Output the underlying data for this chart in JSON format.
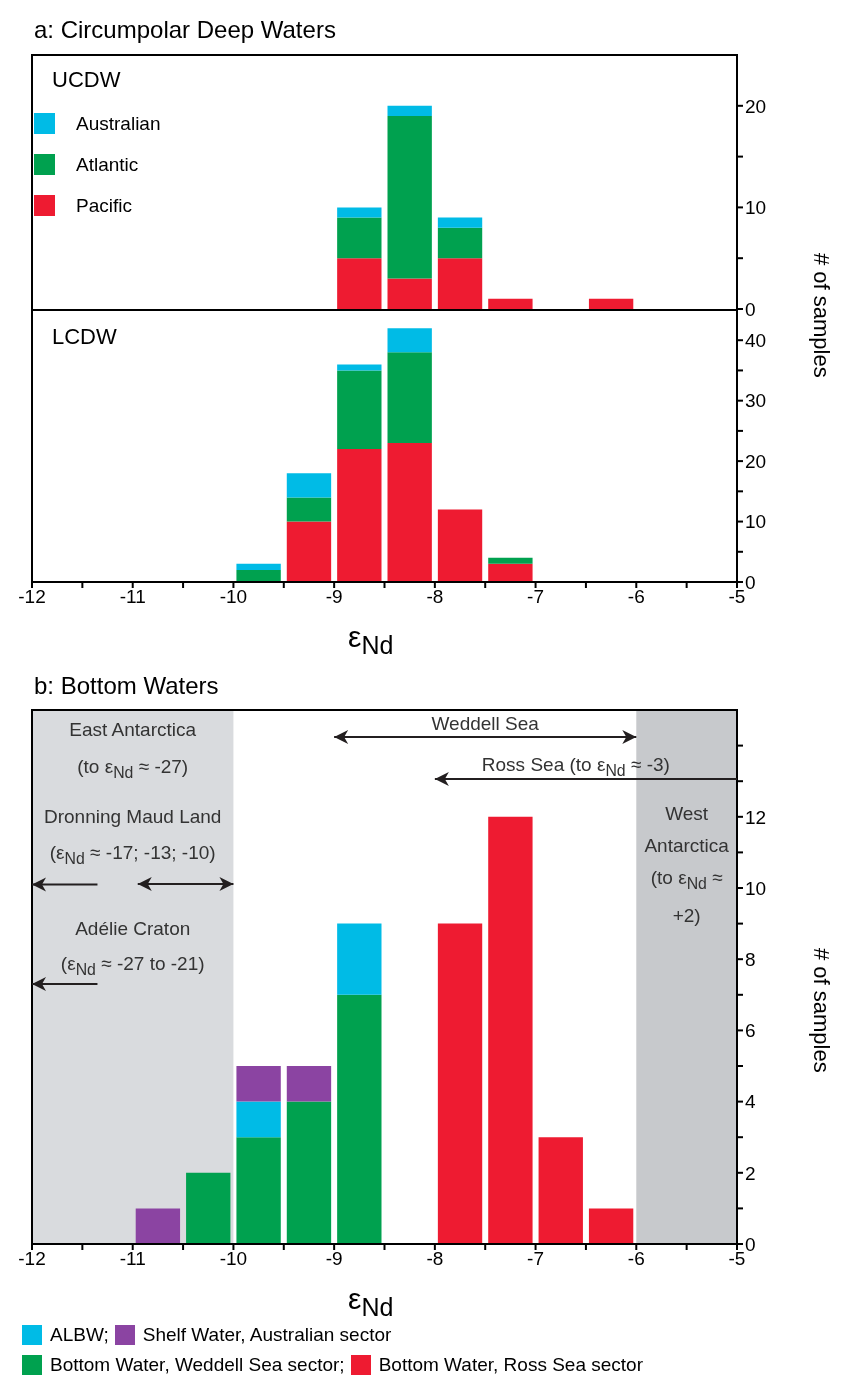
{
  "chart_data": [
    {
      "type": "bar",
      "title": "a: Circumpolar Deep Waters",
      "ylabel": "# of samples",
      "annotations": [
        "UCDW"
      ],
      "stacked": true,
      "legend": "top left",
      "tick_labels": "y",
      "x": [
        -8.75,
        -8.25,
        -7.75,
        -7.25,
        -6.75,
        -6.25
      ],
      "series": [
        {
          "name": "Pacific",
          "color": "#ee1b31",
          "values": [
            5,
            3,
            5,
            1,
            0,
            1
          ]
        },
        {
          "name": "Atlantic",
          "color": "#00a14f",
          "values": [
            4,
            16,
            3,
            0,
            0,
            0
          ]
        },
        {
          "name": "Australian",
          "color": "#00bbe6",
          "values": [
            1,
            1,
            1,
            0,
            0,
            0
          ]
        }
      ],
      "xlim": [
        -12,
        -5
      ],
      "ylim": [
        0,
        25
      ],
      "yticks": [
        0,
        {
          "value": 5,
          "label": null
        },
        10,
        {
          "value": 15,
          "label": null
        },
        20
      ]
    },
    {
      "type": "bar",
      "xlabel": "ε$_{Nd}$",
      "annotations": [
        "LCDW"
      ],
      "stacked": true,
      "x": [
        -9.75,
        -9.25,
        -8.75,
        -8.25,
        -7.75,
        -7.25
      ],
      "series": [
        {
          "color": "#ee1b31",
          "values": [
            0,
            10,
            22,
            23,
            12,
            3
          ]
        },
        {
          "color": "#00a14f",
          "values": [
            2,
            4,
            13,
            15,
            0,
            1
          ]
        },
        {
          "color": "#00bbe6",
          "values": [
            1,
            4,
            1,
            4,
            0,
            0
          ]
        }
      ],
      "xlim": [
        -12,
        -5
      ],
      "xticks": [
        -12,
        {
          "value": -11.5,
          "label": null
        },
        -11,
        {
          "value": -10.5,
          "label": null
        },
        -10,
        {
          "value": -9.5,
          "label": null
        },
        -9,
        {
          "value": -8.5,
          "label": null
        },
        -8,
        {
          "value": -7.5,
          "label": null
        },
        -7,
        {
          "value": -6.5,
          "label": null
        },
        -6,
        {
          "value": -5.5,
          "label": null
        },
        -5
      ],
      "ylim": [
        0,
        45
      ],
      "yticks": [
        0,
        {
          "value": 5,
          "label": null
        },
        10,
        {
          "value": 15,
          "label": null
        },
        20,
        {
          "value": 25,
          "label": null
        },
        30,
        {
          "value": 35,
          "label": null
        },
        40
      ]
    },
    {
      "type": "bar",
      "title": "b: Bottom Waters",
      "xlabel": "ε$_{Nd}$",
      "ylabel": "# of samples",
      "stacked": true,
      "legend": "bottom",
      "annotations": [
        "East Antarctica",
        "(to ε$_{Nd}$ ≈ -27)",
        "Dronning Maud Land",
        {
          "text": "(ε$_{Nd}$ ≈ -17; -13; -10)",
          "x": -12,
          "y": 10.1
        },
        "Adélie Craton",
        {
          "text": "(ε$_{Nd}$ ≈ -27 to -21)",
          "x": -12,
          "y": 7.3
        },
        "Weddell Sea",
        "Ross Sea (to ε$_{Nd}$ ≈ -3)",
        "West Antarctica (to ε$_{Nd}$ ≈ +2)"
      ],
      "bands": [
        {
          "axis": "x",
          "from": -12,
          "to": -10,
          "color": "#d9dbde"
        },
        {
          "axis": "x",
          "from": -6,
          "to": -5,
          "color": "#c7c9cc"
        }
      ],
      "x": [
        -10.75,
        -10.25,
        -9.75,
        -9.25,
        -8.75,
        -8.25,
        -7.75,
        -7.25,
        -6.75,
        -6.25
      ],
      "series": [
        {
          "name": "Bottom Water, Ross Sea sector",
          "color": "#ee1b31",
          "values": [
            0,
            0,
            0,
            0,
            0,
            0,
            9,
            12,
            3,
            1
          ]
        },
        {
          "name": "Bottom Water, Weddell Sea sector;",
          "color": "#00a14f",
          "values": [
            0,
            2,
            3,
            4,
            7,
            0,
            0,
            0,
            0,
            0
          ]
        },
        {
          "name": "ALBW;",
          "color": "#00bbe6",
          "values": [
            0,
            0,
            1,
            0,
            2,
            0,
            0,
            0,
            0,
            0
          ]
        },
        {
          "name": "Shelf Water, Australian sector",
          "color": "#8b44a2",
          "values": [
            1,
            0,
            1,
            1,
            0,
            0,
            0,
            0,
            0,
            0
          ]
        }
      ],
      "xlim": [
        -12,
        -5
      ],
      "xticks": [
        -12,
        {
          "value": -11.5,
          "label": null
        },
        -11,
        {
          "value": -10.5,
          "label": null
        },
        -10,
        {
          "value": -9.5,
          "label": null
        },
        -9,
        {
          "value": -8.5,
          "label": null
        },
        -8,
        {
          "value": -7.5,
          "label": null
        },
        -7,
        {
          "value": -6.5,
          "label": null
        },
        -6,
        {
          "value": -5.5,
          "label": null
        },
        -5
      ],
      "ylim": [
        0,
        15
      ],
      "yticks": [
        0,
        {
          "value": 1,
          "label": null
        },
        2,
        {
          "value": 3,
          "label": null
        },
        4,
        {
          "value": 5,
          "label": null
        },
        6,
        {
          "value": 7,
          "label": null
        },
        8,
        {
          "value": 9,
          "label": null
        },
        10,
        {
          "value": 11,
          "label": null
        },
        12,
        {
          "value": 13,
          "label": null
        },
        {
          "value": 14,
          "label": null
        }
      ]
    }
  ]
}
